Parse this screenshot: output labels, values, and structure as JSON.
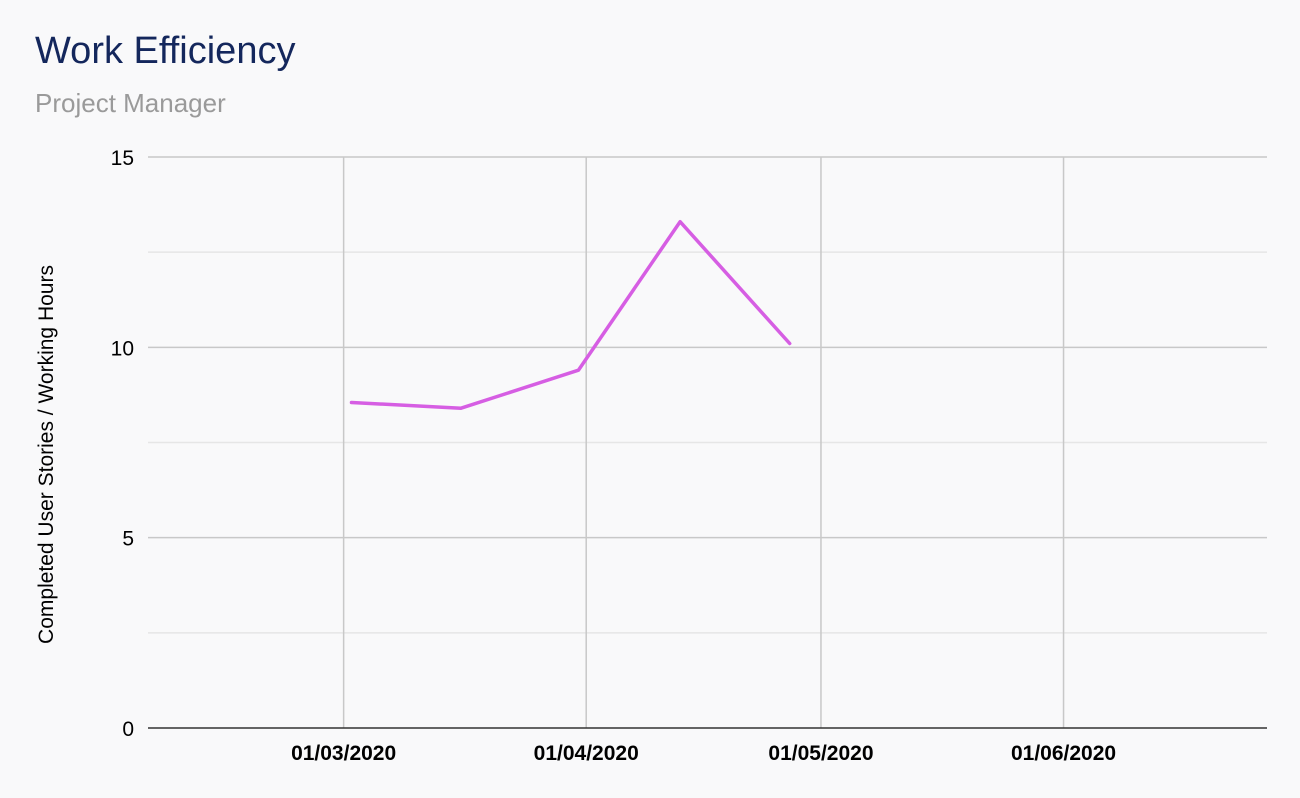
{
  "chart_data": {
    "type": "line",
    "title": "Work Efficiency",
    "subtitle": "Project Manager",
    "xlabel": "",
    "ylabel": "Completed User Stories / Working Hours",
    "x_type": "date",
    "xlim": [
      "2020-02-05",
      "2020-06-27"
    ],
    "ylim": [
      0,
      15
    ],
    "yticks": [
      0,
      5,
      10,
      15
    ],
    "xticks": [
      {
        "date": "2020-03-01",
        "label": "01/03/2020"
      },
      {
        "date": "2020-04-01",
        "label": "01/04/2020"
      },
      {
        "date": "2020-05-01",
        "label": "01/05/2020"
      },
      {
        "date": "2020-06-01",
        "label": "01/06/2020"
      }
    ],
    "grid": true,
    "legend": "none",
    "series": [
      {
        "color": "#d65ee3",
        "x": [
          "2020-03-02",
          "2020-03-16",
          "2020-03-31",
          "2020-04-13",
          "2020-04-27"
        ],
        "y": [
          8.55,
          8.4,
          9.4,
          13.3,
          10.1
        ]
      }
    ]
  }
}
